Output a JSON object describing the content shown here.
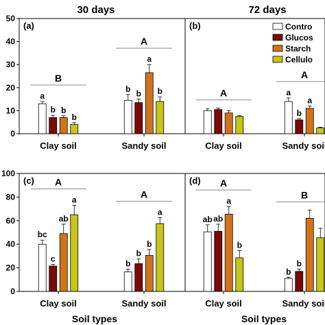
{
  "figure": {
    "col_titles": [
      "30 days",
      "72 days"
    ],
    "xlabel": "Soil types"
  },
  "legend": {
    "entries": [
      {
        "label": "Contro",
        "color": "#ffffff"
      },
      {
        "label": "Glucos",
        "color": "#7a0a0a"
      },
      {
        "label": "Starch",
        "color": "#d2731b"
      },
      {
        "label": "Cellulo",
        "color": "#c7c41a"
      }
    ]
  },
  "chart_data": [
    {
      "type": "bar",
      "panel": "(a)",
      "categories": [
        "Clay soil",
        "Sandy soil"
      ],
      "ylim": [
        0,
        50
      ],
      "yticks": [
        0,
        10,
        20,
        30,
        40,
        50
      ],
      "series": [
        {
          "name": "Contro",
          "values": [
            13,
            14.5
          ],
          "errors": [
            1,
            2.5
          ],
          "letters": [
            "a",
            "b"
          ]
        },
        {
          "name": "Glucos",
          "values": [
            7,
            13.5
          ],
          "errors": [
            1,
            1.5
          ],
          "letters": [
            "b",
            "b"
          ]
        },
        {
          "name": "Starch",
          "values": [
            7,
            26.5
          ],
          "errors": [
            0.8,
            3.5
          ],
          "letters": [
            "b",
            "a"
          ]
        },
        {
          "name": "Cellulo",
          "values": [
            4,
            14
          ],
          "errors": [
            0.8,
            2
          ],
          "letters": [
            "b",
            "b"
          ]
        }
      ],
      "group_letters": [
        "B",
        "A"
      ]
    },
    {
      "type": "bar",
      "panel": "(b)",
      "categories": [
        "Clay soil",
        "Sandy soil"
      ],
      "ylim": [
        0,
        50
      ],
      "yticks": [
        0,
        10,
        20,
        30,
        40,
        50
      ],
      "series": [
        {
          "name": "Contro",
          "values": [
            10,
            14
          ],
          "errors": [
            0.8,
            1.5
          ],
          "letters": [
            "",
            "a"
          ]
        },
        {
          "name": "Glucos",
          "values": [
            10.5,
            6
          ],
          "errors": [
            0.6,
            0.6
          ],
          "letters": [
            "",
            "b"
          ]
        },
        {
          "name": "Starch",
          "values": [
            9,
            11
          ],
          "errors": [
            1,
            1
          ],
          "letters": [
            "",
            "a"
          ]
        },
        {
          "name": "Cellulo",
          "values": [
            7.5,
            2.5
          ],
          "errors": [
            0.3,
            0.3
          ],
          "letters": [
            "",
            ""
          ]
        }
      ],
      "group_letters": [
        "A",
        "A"
      ]
    },
    {
      "type": "bar",
      "panel": "(c)",
      "categories": [
        "Clay soil",
        "Sandy soil"
      ],
      "ylim": [
        0,
        100
      ],
      "yticks": [
        0,
        20,
        40,
        60,
        80,
        100
      ],
      "series": [
        {
          "name": "Contro",
          "values": [
            40,
            16.5
          ],
          "errors": [
            3.5,
            2.5
          ],
          "letters": [
            "bc",
            "b"
          ]
        },
        {
          "name": "Glucos",
          "values": [
            21.5,
            23.5
          ],
          "errors": [
            1.5,
            4
          ],
          "letters": [
            "c",
            "b"
          ]
        },
        {
          "name": "Starch",
          "values": [
            49,
            30.5
          ],
          "errors": [
            8,
            5
          ],
          "letters": [
            "ab",
            "b"
          ]
        },
        {
          "name": "Cellulo",
          "values": [
            65,
            57.5
          ],
          "errors": [
            8,
            5
          ],
          "letters": [
            "a",
            "a"
          ]
        }
      ],
      "group_letters": [
        "A",
        "A"
      ]
    },
    {
      "type": "bar",
      "panel": "(d)",
      "categories": [
        "Clay soil",
        "Sandy soil"
      ],
      "ylim": [
        0,
        100
      ],
      "yticks": [
        0,
        20,
        40,
        60,
        80,
        100
      ],
      "series": [
        {
          "name": "Contro",
          "values": [
            50.5,
            11
          ],
          "errors": [
            6,
            1
          ],
          "letters": [
            "ab",
            "b"
          ]
        },
        {
          "name": "Glucos",
          "values": [
            51,
            17
          ],
          "errors": [
            6,
            2
          ],
          "letters": [
            "ab",
            "b"
          ]
        },
        {
          "name": "Starch",
          "values": [
            65.5,
            62
          ],
          "errors": [
            6.5,
            7
          ],
          "letters": [
            "a",
            ""
          ]
        },
        {
          "name": "Cellulo",
          "values": [
            28.5,
            45.5
          ],
          "errors": [
            6,
            8
          ],
          "letters": [
            "b",
            ""
          ]
        }
      ],
      "group_letters": [
        "A",
        "B"
      ]
    }
  ]
}
